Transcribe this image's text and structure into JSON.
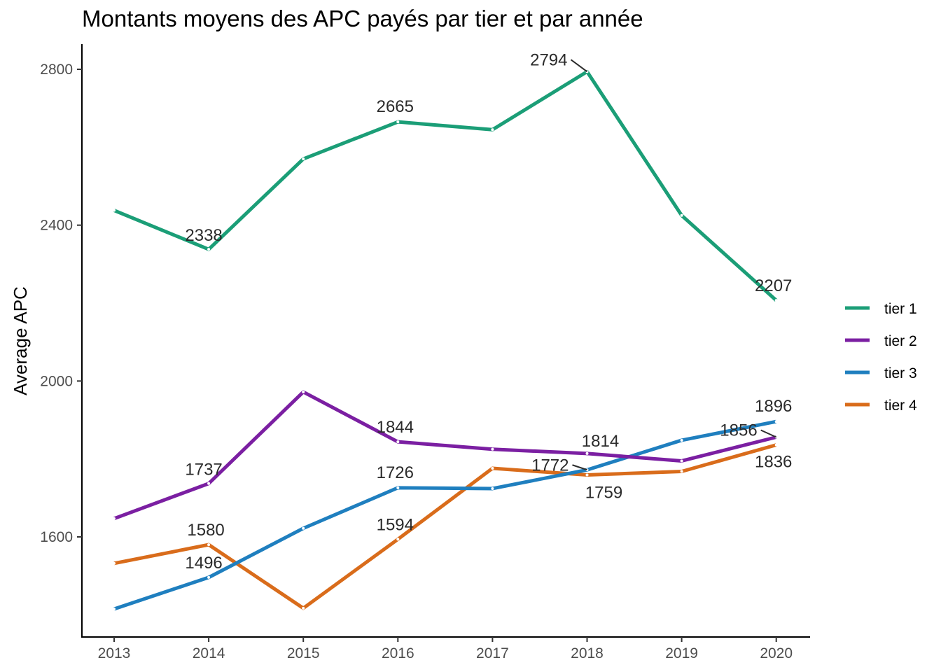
{
  "chart_data": {
    "type": "line",
    "title": "Montants moyens des APC payés par tier et par année",
    "xlabel": "",
    "ylabel": "Average APC",
    "x": [
      2013,
      2014,
      2015,
      2016,
      2017,
      2018,
      2019,
      2020
    ],
    "xticks": [
      "2013",
      "2014",
      "2015",
      "2016",
      "2017",
      "2018",
      "2019",
      "2020"
    ],
    "yticks": [
      "1600",
      "2000",
      "2400",
      "2800"
    ],
    "ylim": [
      1400,
      2860
    ],
    "grid": false,
    "legend_position": "right",
    "series": [
      {
        "name": "tier 1",
        "color": "#1b9e77",
        "values": [
          2438,
          2338,
          2570,
          2665,
          2645,
          2794,
          2425,
          2207
        ]
      },
      {
        "name": "tier 2",
        "color": "#7b1fa2",
        "values": [
          1647,
          1737,
          1972,
          1844,
          1825,
          1814,
          1795,
          1856
        ]
      },
      {
        "name": "tier 3",
        "color": "#1f7fbf",
        "values": [
          1415,
          1496,
          1622,
          1726,
          1724,
          1772,
          1848,
          1896
        ]
      },
      {
        "name": "tier 4",
        "color": "#d96c1b",
        "values": [
          1532,
          1580,
          1417,
          1594,
          1776,
          1759,
          1768,
          1836
        ]
      }
    ],
    "annotations": [
      {
        "series": "tier 1",
        "x": 2014,
        "text": "2338"
      },
      {
        "series": "tier 1",
        "x": 2016,
        "text": "2665"
      },
      {
        "series": "tier 1",
        "x": 2018,
        "text": "2794"
      },
      {
        "series": "tier 1",
        "x": 2020,
        "text": "2207"
      },
      {
        "series": "tier 2",
        "x": 2014,
        "text": "1737"
      },
      {
        "series": "tier 2",
        "x": 2016,
        "text": "1844"
      },
      {
        "series": "tier 2",
        "x": 2018,
        "text": "1814"
      },
      {
        "series": "tier 2",
        "x": 2020,
        "text": "1856"
      },
      {
        "series": "tier 3",
        "x": 2014,
        "text": "1496"
      },
      {
        "series": "tier 3",
        "x": 2016,
        "text": "1726"
      },
      {
        "series": "tier 3",
        "x": 2018,
        "text": "1772"
      },
      {
        "series": "tier 3",
        "x": 2020,
        "text": "1896"
      },
      {
        "series": "tier 4",
        "x": 2014,
        "text": "1580"
      },
      {
        "series": "tier 4",
        "x": 2016,
        "text": "1594"
      },
      {
        "series": "tier 4",
        "x": 2018,
        "text": "1759"
      },
      {
        "series": "tier 4",
        "x": 2020,
        "text": "1836"
      }
    ]
  }
}
